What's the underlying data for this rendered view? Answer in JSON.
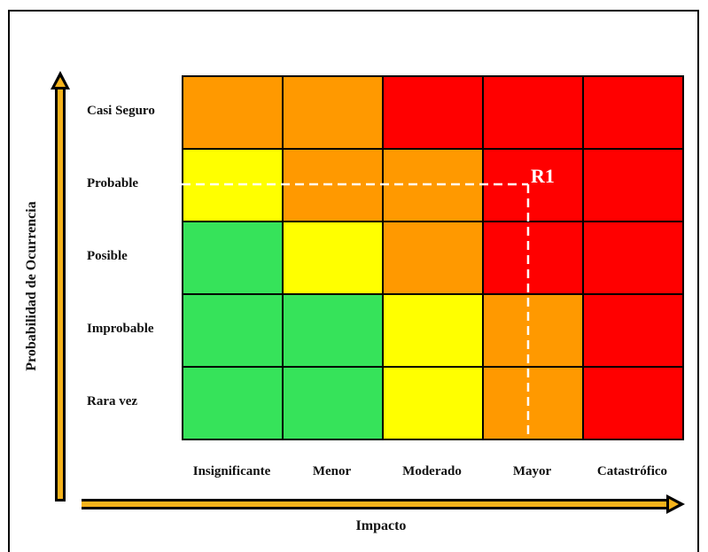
{
  "chart_data": {
    "type": "heatmap",
    "title": "",
    "xlabel": "Impacto",
    "ylabel": "Probabilidad de Ocurrencia",
    "x_categories": [
      "Insignificante",
      "Menor",
      "Moderado",
      "Mayor",
      "Catastrófico"
    ],
    "y_categories": [
      "Casi Seguro",
      "Probable",
      "Posible",
      "Improbable",
      "Rara vez"
    ],
    "colors": {
      "green": "#36e35a",
      "yellow": "#ffff00",
      "orange": "#ff9900",
      "red": "#ff0000"
    },
    "cells": [
      [
        "orange",
        "orange",
        "red",
        "red",
        "red"
      ],
      [
        "yellow",
        "orange",
        "orange",
        "red",
        "red"
      ],
      [
        "green",
        "yellow",
        "orange",
        "red",
        "red"
      ],
      [
        "green",
        "green",
        "yellow",
        "orange",
        "red"
      ],
      [
        "green",
        "green",
        "yellow",
        "orange",
        "red"
      ]
    ],
    "markers": [
      {
        "label": "R1",
        "x": "Mayor",
        "y": "Probable"
      }
    ]
  }
}
